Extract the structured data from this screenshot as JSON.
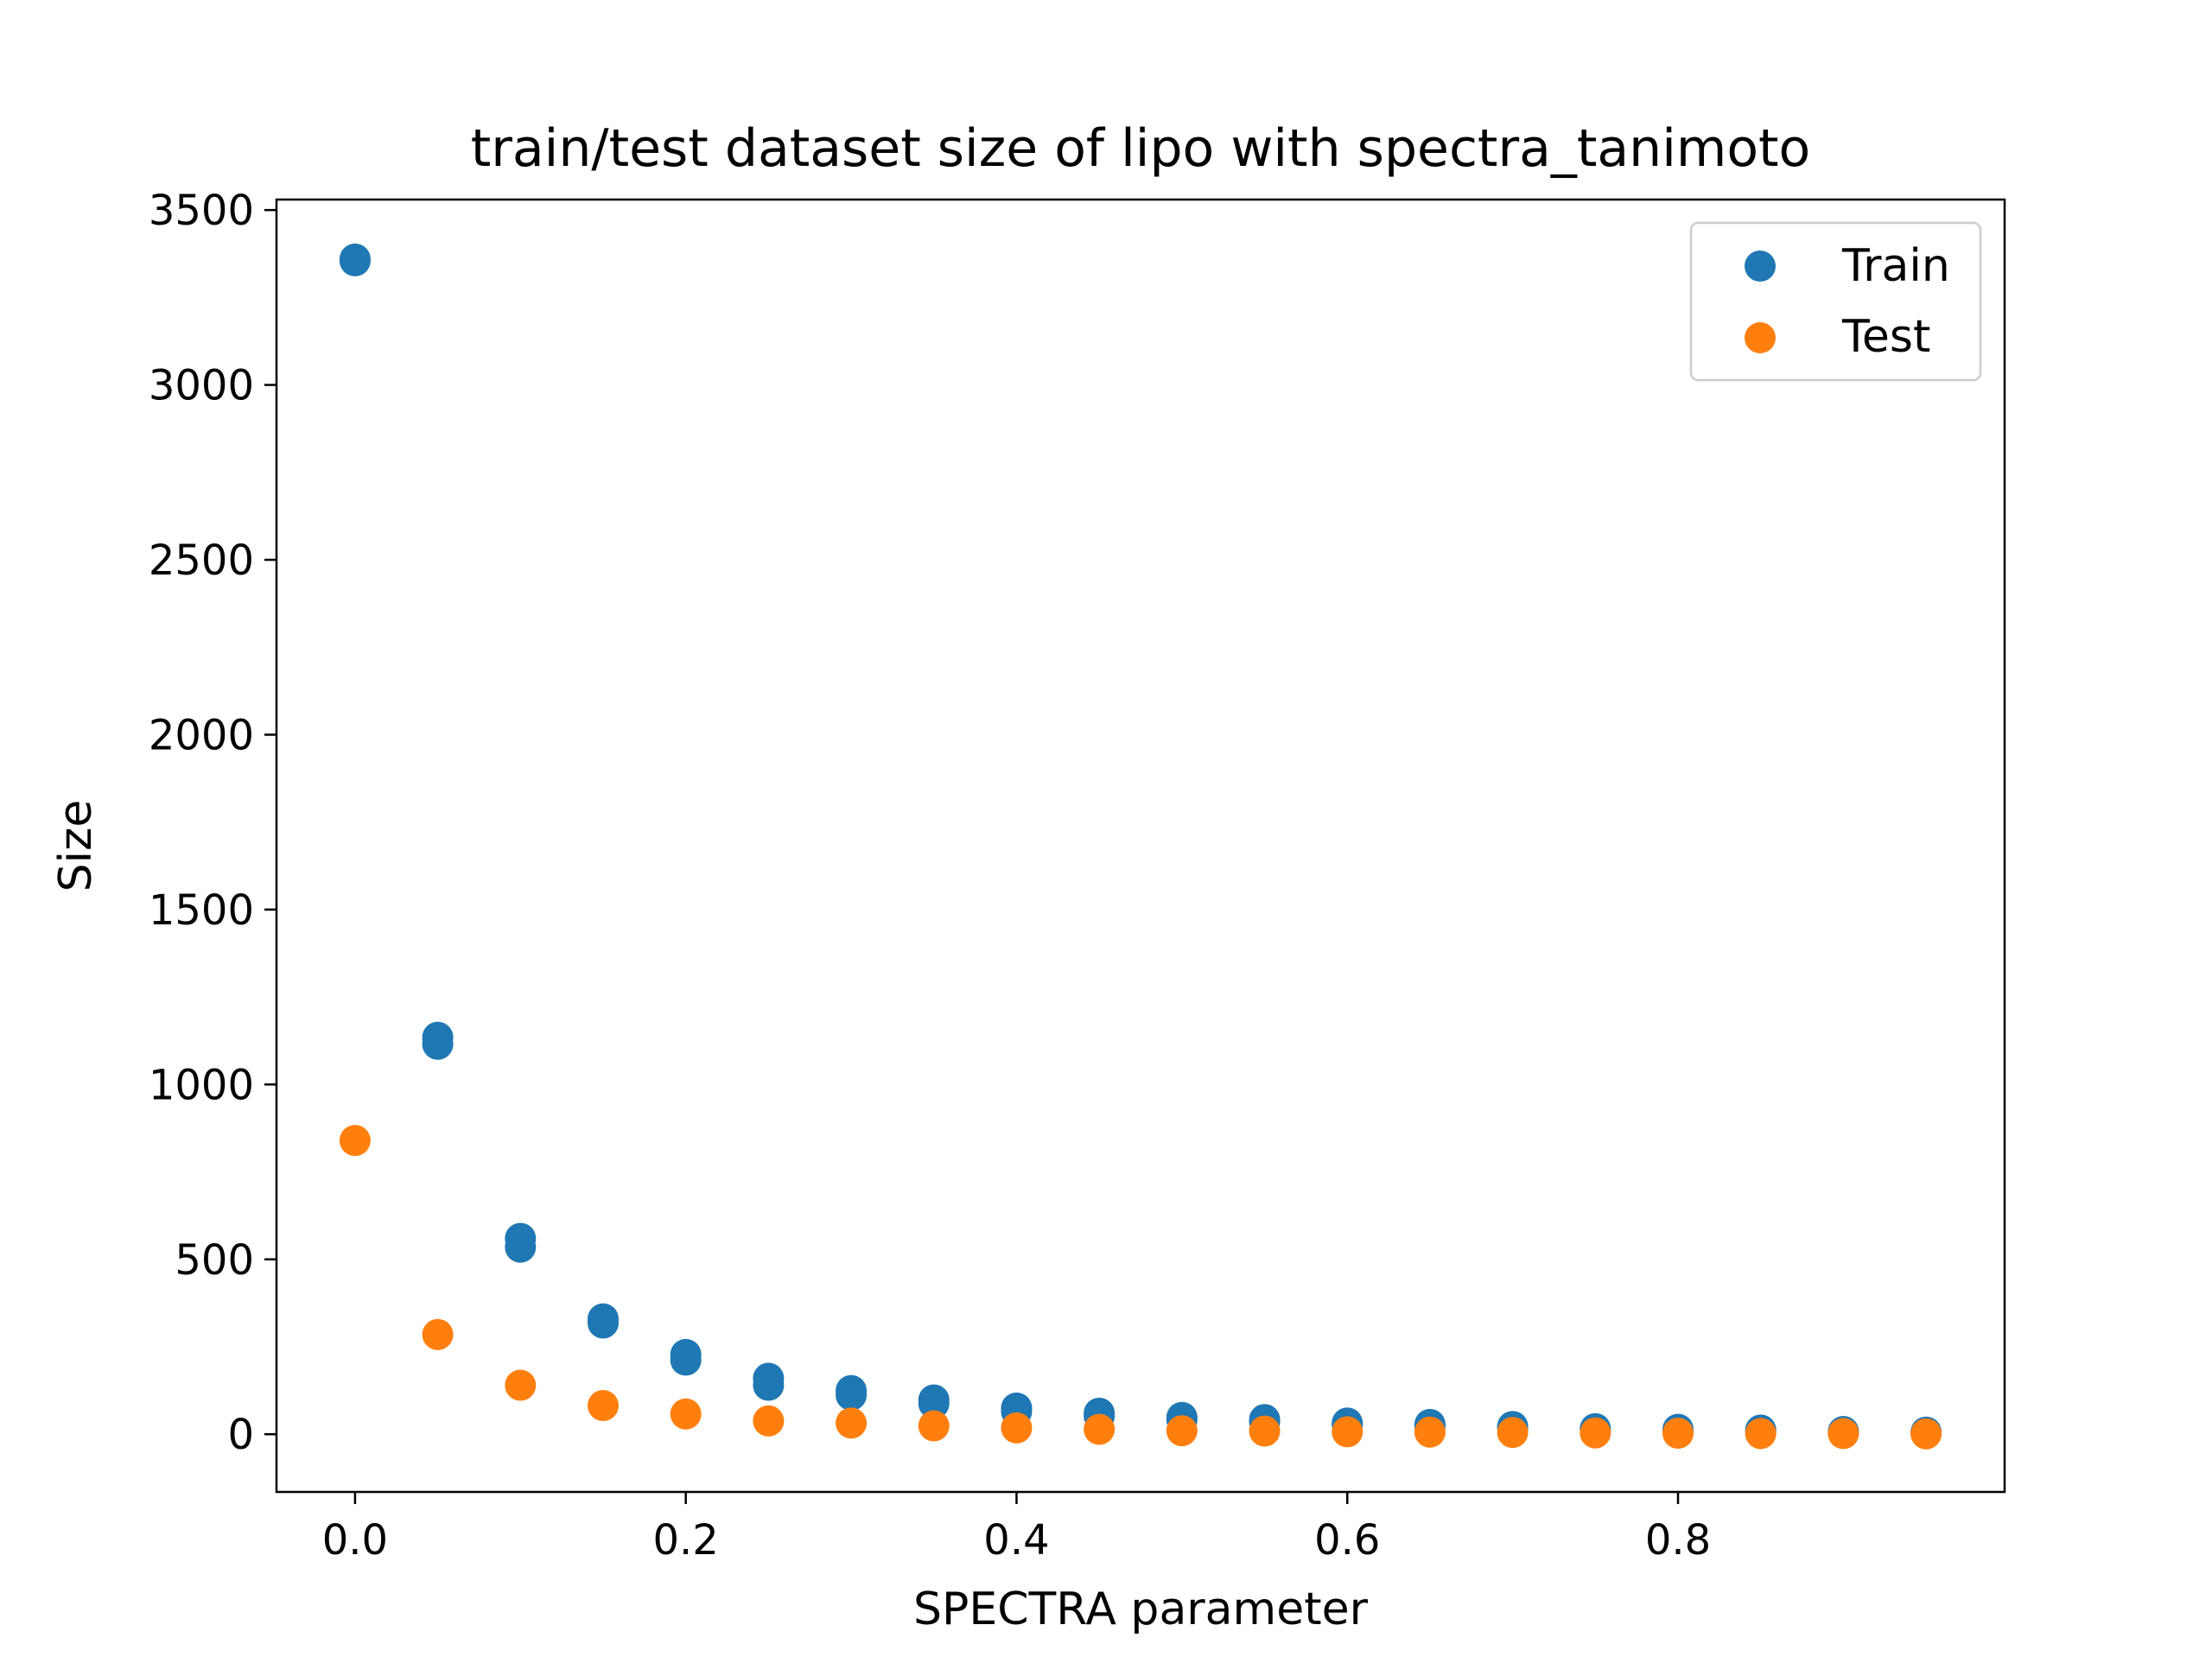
{
  "chart_data": {
    "type": "scatter",
    "title": "train/test dataset size of lipo with spectra_tanimoto",
    "xlabel": "SPECTRA parameter",
    "ylabel": "Size",
    "xlim": [
      -0.0475,
      0.9975
    ],
    "ylim": [
      -165,
      3530
    ],
    "x_ticks": [
      0.0,
      0.2,
      0.4,
      0.6,
      0.8
    ],
    "x_tick_labels": [
      "0.0",
      "0.2",
      "0.4",
      "0.6",
      "0.8"
    ],
    "y_ticks": [
      0,
      500,
      1000,
      1500,
      2000,
      2500,
      3000,
      3500
    ],
    "y_tick_labels": [
      "0",
      "500",
      "1000",
      "1500",
      "2000",
      "2500",
      "3000",
      "3500"
    ],
    "grid": false,
    "legend_position": "top-right",
    "series": [
      {
        "name": "Train",
        "color": "#1f77b4",
        "points": [
          [
            0.0,
            3360
          ],
          [
            0.0,
            3355
          ],
          [
            0.05,
            1135
          ],
          [
            0.05,
            1115
          ],
          [
            0.1,
            560
          ],
          [
            0.1,
            535
          ],
          [
            0.15,
            330
          ],
          [
            0.15,
            318
          ],
          [
            0.2,
            228
          ],
          [
            0.2,
            212
          ],
          [
            0.25,
            160
          ],
          [
            0.25,
            140
          ],
          [
            0.3,
            125
          ],
          [
            0.3,
            112
          ],
          [
            0.35,
            98
          ],
          [
            0.35,
            88
          ],
          [
            0.4,
            75
          ],
          [
            0.4,
            65
          ],
          [
            0.45,
            60
          ],
          [
            0.45,
            52
          ],
          [
            0.5,
            48
          ],
          [
            0.5,
            42
          ],
          [
            0.55,
            42
          ],
          [
            0.55,
            36
          ],
          [
            0.6,
            32
          ],
          [
            0.6,
            27
          ],
          [
            0.65,
            28
          ],
          [
            0.65,
            22
          ],
          [
            0.7,
            22
          ],
          [
            0.7,
            18
          ],
          [
            0.75,
            16
          ],
          [
            0.75,
            12
          ],
          [
            0.8,
            14
          ],
          [
            0.8,
            10
          ],
          [
            0.85,
            12
          ],
          [
            0.85,
            8
          ],
          [
            0.9,
            8
          ],
          [
            0.9,
            5
          ],
          [
            0.95,
            6
          ],
          [
            0.95,
            3
          ]
        ]
      },
      {
        "name": "Test",
        "color": "#ff7f0e",
        "points": [
          [
            0.0,
            840
          ],
          [
            0.05,
            285
          ],
          [
            0.1,
            140
          ],
          [
            0.15,
            82
          ],
          [
            0.2,
            58
          ],
          [
            0.25,
            38
          ],
          [
            0.3,
            32
          ],
          [
            0.35,
            24
          ],
          [
            0.4,
            18
          ],
          [
            0.45,
            14
          ],
          [
            0.5,
            10
          ],
          [
            0.55,
            9
          ],
          [
            0.6,
            7
          ],
          [
            0.65,
            6
          ],
          [
            0.7,
            5
          ],
          [
            0.75,
            4
          ],
          [
            0.8,
            3
          ],
          [
            0.85,
            2
          ],
          [
            0.9,
            2
          ],
          [
            0.95,
            1
          ]
        ]
      }
    ]
  }
}
